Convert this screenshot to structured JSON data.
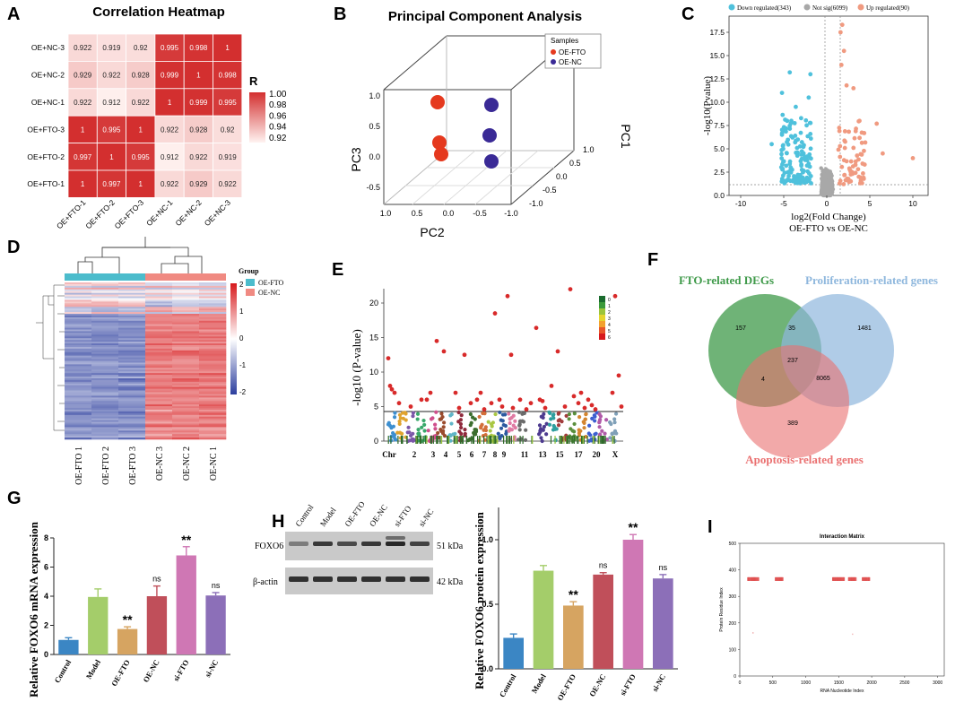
{
  "panels": {
    "A": {
      "letter": "A",
      "title": "Correlation Heatmap",
      "rows": [
        "OE+NC-3",
        "OE+NC-2",
        "OE+NC-1",
        "OE+FTO-3",
        "OE+FTO-2",
        "OE+FTO-1"
      ],
      "cols": [
        "OE+FTO-1",
        "OE+FTO-2",
        "OE+FTO-3",
        "OE+NC-1",
        "OE+NC-2",
        "OE+NC-3"
      ],
      "cells": [
        [
          "0.922",
          "0.919",
          "0.92",
          "0.995",
          "0.998",
          "1"
        ],
        [
          "0.929",
          "0.922",
          "0.928",
          "0.999",
          "1",
          "0.998"
        ],
        [
          "0.922",
          "0.912",
          "0.922",
          "1",
          "0.999",
          "0.995"
        ],
        [
          "1",
          "0.995",
          "1",
          "0.922",
          "0.928",
          "0.92"
        ],
        [
          "0.997",
          "1",
          "0.995",
          "0.912",
          "0.922",
          "0.919"
        ],
        [
          "1",
          "0.997",
          "1",
          "0.922",
          "0.929",
          "0.922"
        ]
      ],
      "legend_title": "R",
      "legend_ticks": [
        "1.00",
        "0.98",
        "0.96",
        "0.94",
        "0.92"
      ],
      "colors": {
        "high": "#d32f2f",
        "low": "#ffffff"
      }
    },
    "B": {
      "letter": "B",
      "title": "Principal Component Analysis",
      "axis_pc1": "PC1",
      "axis_pc2": "PC2",
      "axis_pc3": "PC3",
      "pc3_ticks": [
        "1.0",
        "0.5",
        "0.0",
        "-0.5"
      ],
      "pc2_ticks": [
        "1.0",
        "0.5",
        "0.0",
        "-0.5",
        "-1.0"
      ],
      "pc1_ticks": [
        "1.0",
        "0.5",
        "0.0",
        "-0.5",
        "-1.0"
      ],
      "legend_title": "Samples",
      "legend_items": [
        "OE-FTO",
        "OE-NC"
      ],
      "colors": {
        "fto": "#e5391e",
        "nc": "#3a2a96"
      }
    },
    "C": {
      "letter": "C",
      "legend": [
        "Down regulated(343)",
        "Not sig(6099)",
        "Up regulated(90)"
      ],
      "ylabel": "-log10(Pvalue)",
      "xlabel": "log2(Fold Change)",
      "subtitle": "OE-FTO vs OE-NC",
      "xticks": [
        "-10",
        "-5",
        "0",
        "5",
        "10"
      ],
      "yticks": [
        "0.0",
        "2.5",
        "5.0",
        "7.5",
        "10.0",
        "12.5",
        "15.0",
        "17.5"
      ],
      "colors": {
        "down": "#4fc1dc",
        "ns": "#a8a8a8",
        "up": "#f09a80"
      }
    },
    "D": {
      "letter": "D",
      "legend_group_title": "Group",
      "legend_groups": [
        "OE-FTO",
        "OE-NC"
      ],
      "scale_ticks": [
        "2",
        "1",
        "0",
        "-1",
        "-2"
      ],
      "xlabels": [
        "OE-FTO 1",
        "OE-FTO 2",
        "OE-FTO 3",
        "OE-NC 3",
        "OE-NC 2",
        "OE-NC 1"
      ],
      "colors": {
        "fto": "#4cbccc",
        "nc": "#f08a82",
        "high": "#d7191c",
        "mid": "#ffffff",
        "low": "#2c3e9e"
      }
    },
    "E": {
      "letter": "E",
      "ylabel": "-log10 (P-value)",
      "yticks": [
        "0",
        "5",
        "10",
        "15",
        "20"
      ],
      "chr_labels": [
        "Chr",
        "2",
        "3",
        "4",
        "5",
        "6",
        "7",
        "8",
        "9",
        "11",
        "13",
        "15",
        "17",
        "20",
        "X"
      ],
      "scale_labels": [
        "0",
        "1",
        "2",
        "3",
        "4",
        "5",
        "6"
      ]
    },
    "F": {
      "letter": "F",
      "set_labels": [
        "FTO-related DEGs",
        "Proliferation-related genes",
        "Apoptosis-related genes"
      ],
      "counts": [
        "157",
        "35",
        "1481",
        "237",
        "4",
        "8065",
        "389"
      ],
      "colors": {
        "fto": "#3f9a4a",
        "prolif": "#8eb7dd",
        "apop": "#ea7070"
      }
    },
    "G": {
      "letter": "G",
      "ylabel": "Relative FOXO6 mRNA expression"
    },
    "H": {
      "letter": "H",
      "lane_labels": [
        "Control",
        "Model",
        "OE-FTO",
        "OE-NC",
        "si-FTO",
        "si-NC"
      ],
      "band_labels": [
        "FOXO6",
        "β-actin"
      ],
      "kda_labels": [
        "51 kDa",
        "42 kDa"
      ],
      "ylabel": "Relative FOXO6 protein expression"
    },
    "I": {
      "letter": "I",
      "title": "Interaction Matrix",
      "xlabel": "RNA Nucleotide Index",
      "ylabel": "Protein Residue Index",
      "xticks": [
        "0",
        "500",
        "1000",
        "1500",
        "2000",
        "2500",
        "3000"
      ],
      "yticks": [
        "0",
        "100",
        "200",
        "300",
        "400",
        "500"
      ]
    }
  },
  "chart_data": [
    {
      "type": "bar",
      "panel": "G",
      "categories": [
        "Control",
        "Model",
        "OE-FTO",
        "OE-NC",
        "si-FTO",
        "si-NC"
      ],
      "values": [
        1.0,
        3.95,
        1.75,
        4.0,
        6.8,
        4.05
      ],
      "errors": [
        0.15,
        0.55,
        0.15,
        0.7,
        0.6,
        0.2
      ],
      "annotations": [
        "",
        "",
        "**",
        "ns",
        "**",
        "ns"
      ],
      "colors": [
        "#3b86c4",
        "#a4cd6a",
        "#d6a461",
        "#c04f5a",
        "#cf77b4",
        "#8c6fb8"
      ],
      "ylabel": "Relative FOXO6 mRNA expression",
      "ylim": [
        0,
        8
      ],
      "yticks": [
        "0",
        "2",
        "4",
        "6",
        "8"
      ]
    },
    {
      "type": "bar",
      "panel": "H",
      "categories": [
        "Control",
        "Model",
        "OE-FTO",
        "OE-NC",
        "si-FTO",
        "si-NC"
      ],
      "values": [
        0.24,
        0.76,
        0.49,
        0.73,
        1.0,
        0.7
      ],
      "errors": [
        0.03,
        0.04,
        0.03,
        0.015,
        0.04,
        0.03
      ],
      "annotations": [
        "",
        "",
        "**",
        "ns",
        "**",
        "ns"
      ],
      "colors": [
        "#3b86c4",
        "#a4cd6a",
        "#d6a461",
        "#c04f5a",
        "#cf77b4",
        "#8c6fb8"
      ],
      "ylabel": "Relative FOXO6 protein expression",
      "ylim": [
        0,
        1.25
      ],
      "yticks": [
        "0.0",
        "0.5",
        "1.0"
      ]
    }
  ]
}
